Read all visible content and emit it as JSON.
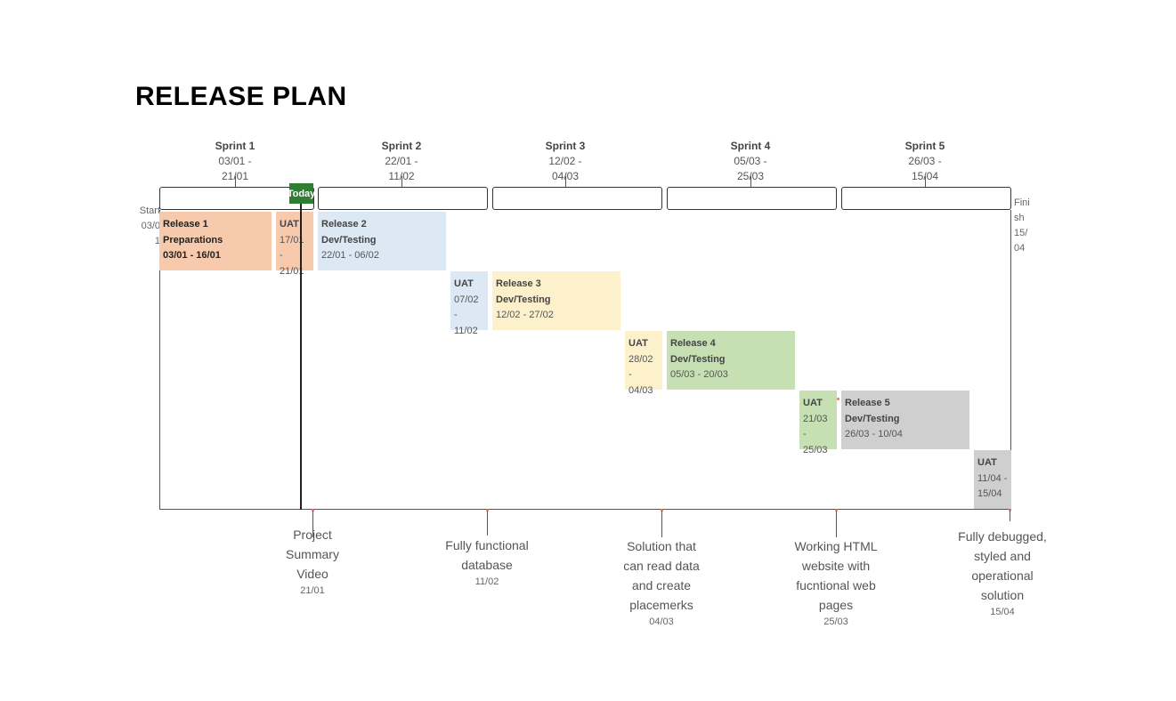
{
  "title": "RELEASE PLAN",
  "sprints": [
    {
      "name": "Sprint 1",
      "dates": "03/01 -\n21/01"
    },
    {
      "name": "Sprint 2",
      "dates": "22/01 -\n11/02"
    },
    {
      "name": "Sprint 3",
      "dates": "12/02 -\n04/03"
    },
    {
      "name": "Sprint 4",
      "dates": "05/03 -\n25/03"
    },
    {
      "name": "Sprint 5",
      "dates": "26/03 -\n15/04"
    }
  ],
  "today_label": "Today",
  "start_label": "Start\n03/0\n1",
  "finish_label": "Fini\nsh\n15/\n04",
  "tasks": [
    {
      "title": "Release 1\nPreparations",
      "dates": "03/01 - 16/01",
      "color": "#f7caad"
    },
    {
      "title": "UAT",
      "dates": "17/01 -\n21/01",
      "color": "#f7caad"
    },
    {
      "title": "Release 2\nDev/Testing",
      "dates": "22/01 - 06/02",
      "color": "#dce8f4"
    },
    {
      "title": "UAT",
      "dates": "07/02 -\n11/02",
      "color": "#dce8f4"
    },
    {
      "title": "Release 3\nDev/Testing",
      "dates": "12/02 - 27/02",
      "color": "#fdf1cc"
    },
    {
      "title": "UAT",
      "dates": "28/02 -\n04/03",
      "color": "#fdf1cc"
    },
    {
      "title": "Release 4\nDev/Testing",
      "dates": "05/03 - 20/03",
      "color": "#c6e0b4"
    },
    {
      "title": "UAT",
      "dates": "21/03 -\n25/03",
      "color": "#c6e0b4"
    },
    {
      "title": "Release 5\nDev/Testing",
      "dates": "26/03 - 10/04",
      "color": "#d0cfcf"
    },
    {
      "title": "UAT",
      "dates": "11/04 -\n15/04",
      "color": "#d0cfcf"
    }
  ],
  "milestones": [
    {
      "label": "Project\nSummary\nVideo",
      "date": "21/01"
    },
    {
      "label": "Fully functional\ndatabase",
      "date": "11/02"
    },
    {
      "label": "Solution that\ncan read data\nand create\nplacemerks",
      "date": "04/03"
    },
    {
      "label": "Working HTML\nwebsite with\nfucntional web\npages",
      "date": "25/03"
    },
    {
      "label": "Fully debugged,\nstyled and\noperational\nsolution",
      "date": "15/04"
    }
  ],
  "colors": {
    "today": "#2f7d32",
    "frame": "#333333"
  }
}
